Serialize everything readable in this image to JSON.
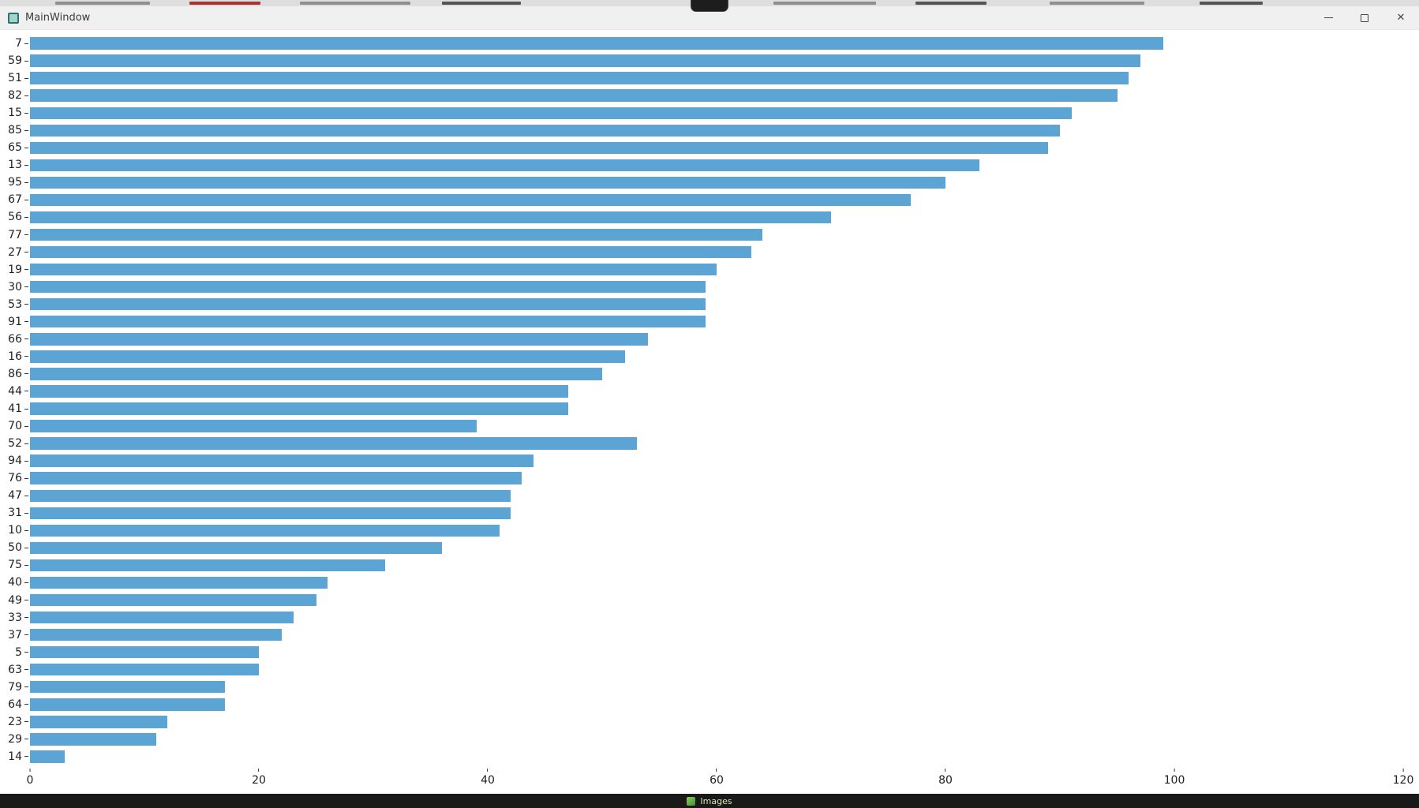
{
  "window": {
    "title": "MainWindow",
    "controls": [
      "minimize-icon",
      "maximize-icon",
      "close-icon"
    ],
    "app_icon": "window-app-icon"
  },
  "taskbar": {
    "label": "Images",
    "icon": "images-icon"
  },
  "colors": {
    "bar": "#5ba4d4",
    "titlebar_bg": "#f0f0f0",
    "taskbar_bg": "#191919"
  },
  "chart_data": {
    "type": "bar",
    "orientation": "horizontal",
    "title": "",
    "xlabel": "",
    "ylabel": "",
    "grid": false,
    "legend": false,
    "xlim": [
      0,
      120
    ],
    "x_ticks": [
      0,
      20,
      40,
      60,
      80,
      100,
      120
    ],
    "bar_color": "#5ba4d4",
    "categories": [
      "7",
      "59",
      "51",
      "82",
      "15",
      "85",
      "65",
      "13",
      "95",
      "67",
      "56",
      "77",
      "27",
      "19",
      "30",
      "53",
      "91",
      "66",
      "16",
      "86",
      "44",
      "41",
      "70",
      "52",
      "94",
      "76",
      "47",
      "31",
      "10",
      "50",
      "75",
      "40",
      "49",
      "33",
      "37",
      "5",
      "63",
      "79",
      "64",
      "23",
      "29",
      "14"
    ],
    "values": [
      99,
      97,
      96,
      95,
      91,
      90,
      89,
      83,
      80,
      77,
      70,
      64,
      63,
      60,
      59,
      59,
      59,
      54,
      52,
      50,
      47,
      47,
      39,
      53,
      44,
      43,
      42,
      42,
      41,
      36,
      31,
      26,
      25,
      23,
      22,
      20,
      20,
      17,
      17,
      12,
      11,
      3
    ]
  }
}
